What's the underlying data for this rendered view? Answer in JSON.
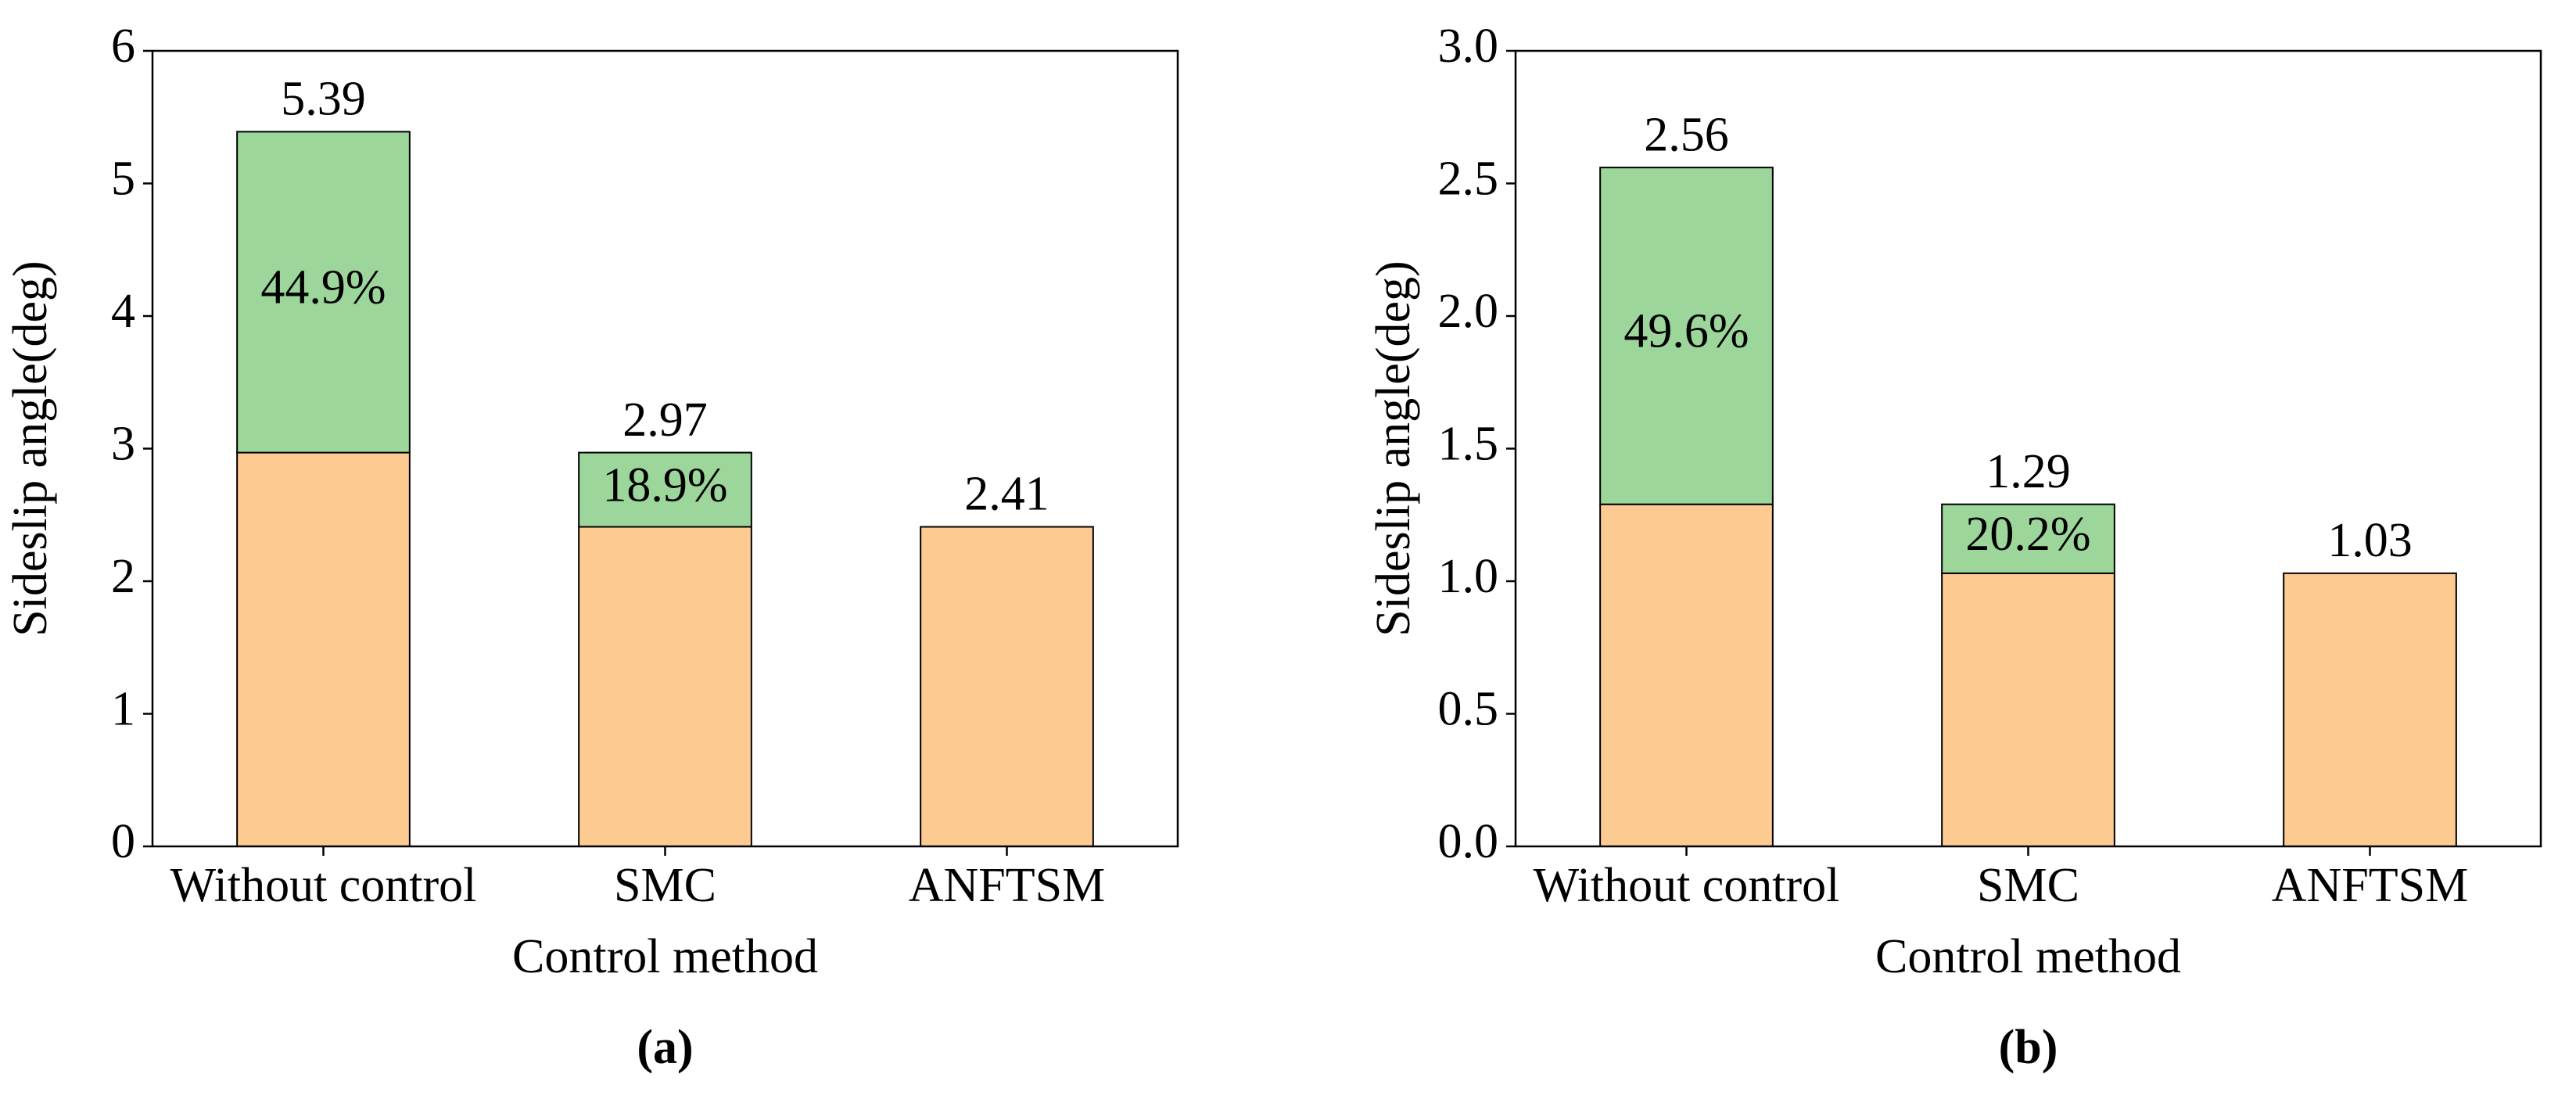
{
  "chart_data": [
    {
      "type": "bar",
      "stacked": true,
      "caption": "(a)",
      "x_label": "Control method",
      "y_label": "Sideslip angle(deg)",
      "categories": [
        "Without control",
        "SMC",
        "ANFTSM"
      ],
      "series": [
        {
          "color": "#fdcb92",
          "values": [
            2.97,
            2.41,
            2.41
          ]
        },
        {
          "color": "#9cd69b",
          "values": [
            2.42,
            0.56,
            null
          ],
          "percent_labels": [
            "44.9%",
            "18.9%",
            null
          ]
        }
      ],
      "totals": [
        5.39,
        2.97,
        2.41
      ],
      "ylim": [
        0,
        6
      ],
      "yticks": [
        0,
        1,
        2,
        3,
        4,
        5,
        6
      ]
    },
    {
      "type": "bar",
      "stacked": true,
      "caption": "(b)",
      "x_label": "Control method",
      "y_label": "Sideslip angle(deg)",
      "categories": [
        "Without control",
        "SMC",
        "ANFTSM"
      ],
      "series": [
        {
          "color": "#fdcb92",
          "values": [
            1.29,
            1.03,
            1.03
          ]
        },
        {
          "color": "#9cd69b",
          "values": [
            1.27,
            0.26,
            null
          ],
          "percent_labels": [
            "49.6%",
            "20.2%",
            null
          ]
        }
      ],
      "totals": [
        2.56,
        1.29,
        1.03
      ],
      "ylim": [
        0,
        3
      ],
      "yticks": [
        {
          "value": 0,
          "label": "0.0"
        },
        0.5,
        {
          "value": 1,
          "label": "1.0"
        },
        1.5,
        {
          "value": 2,
          "label": "2.0"
        },
        2.5,
        {
          "value": 3,
          "label": "3.0"
        }
      ]
    }
  ]
}
